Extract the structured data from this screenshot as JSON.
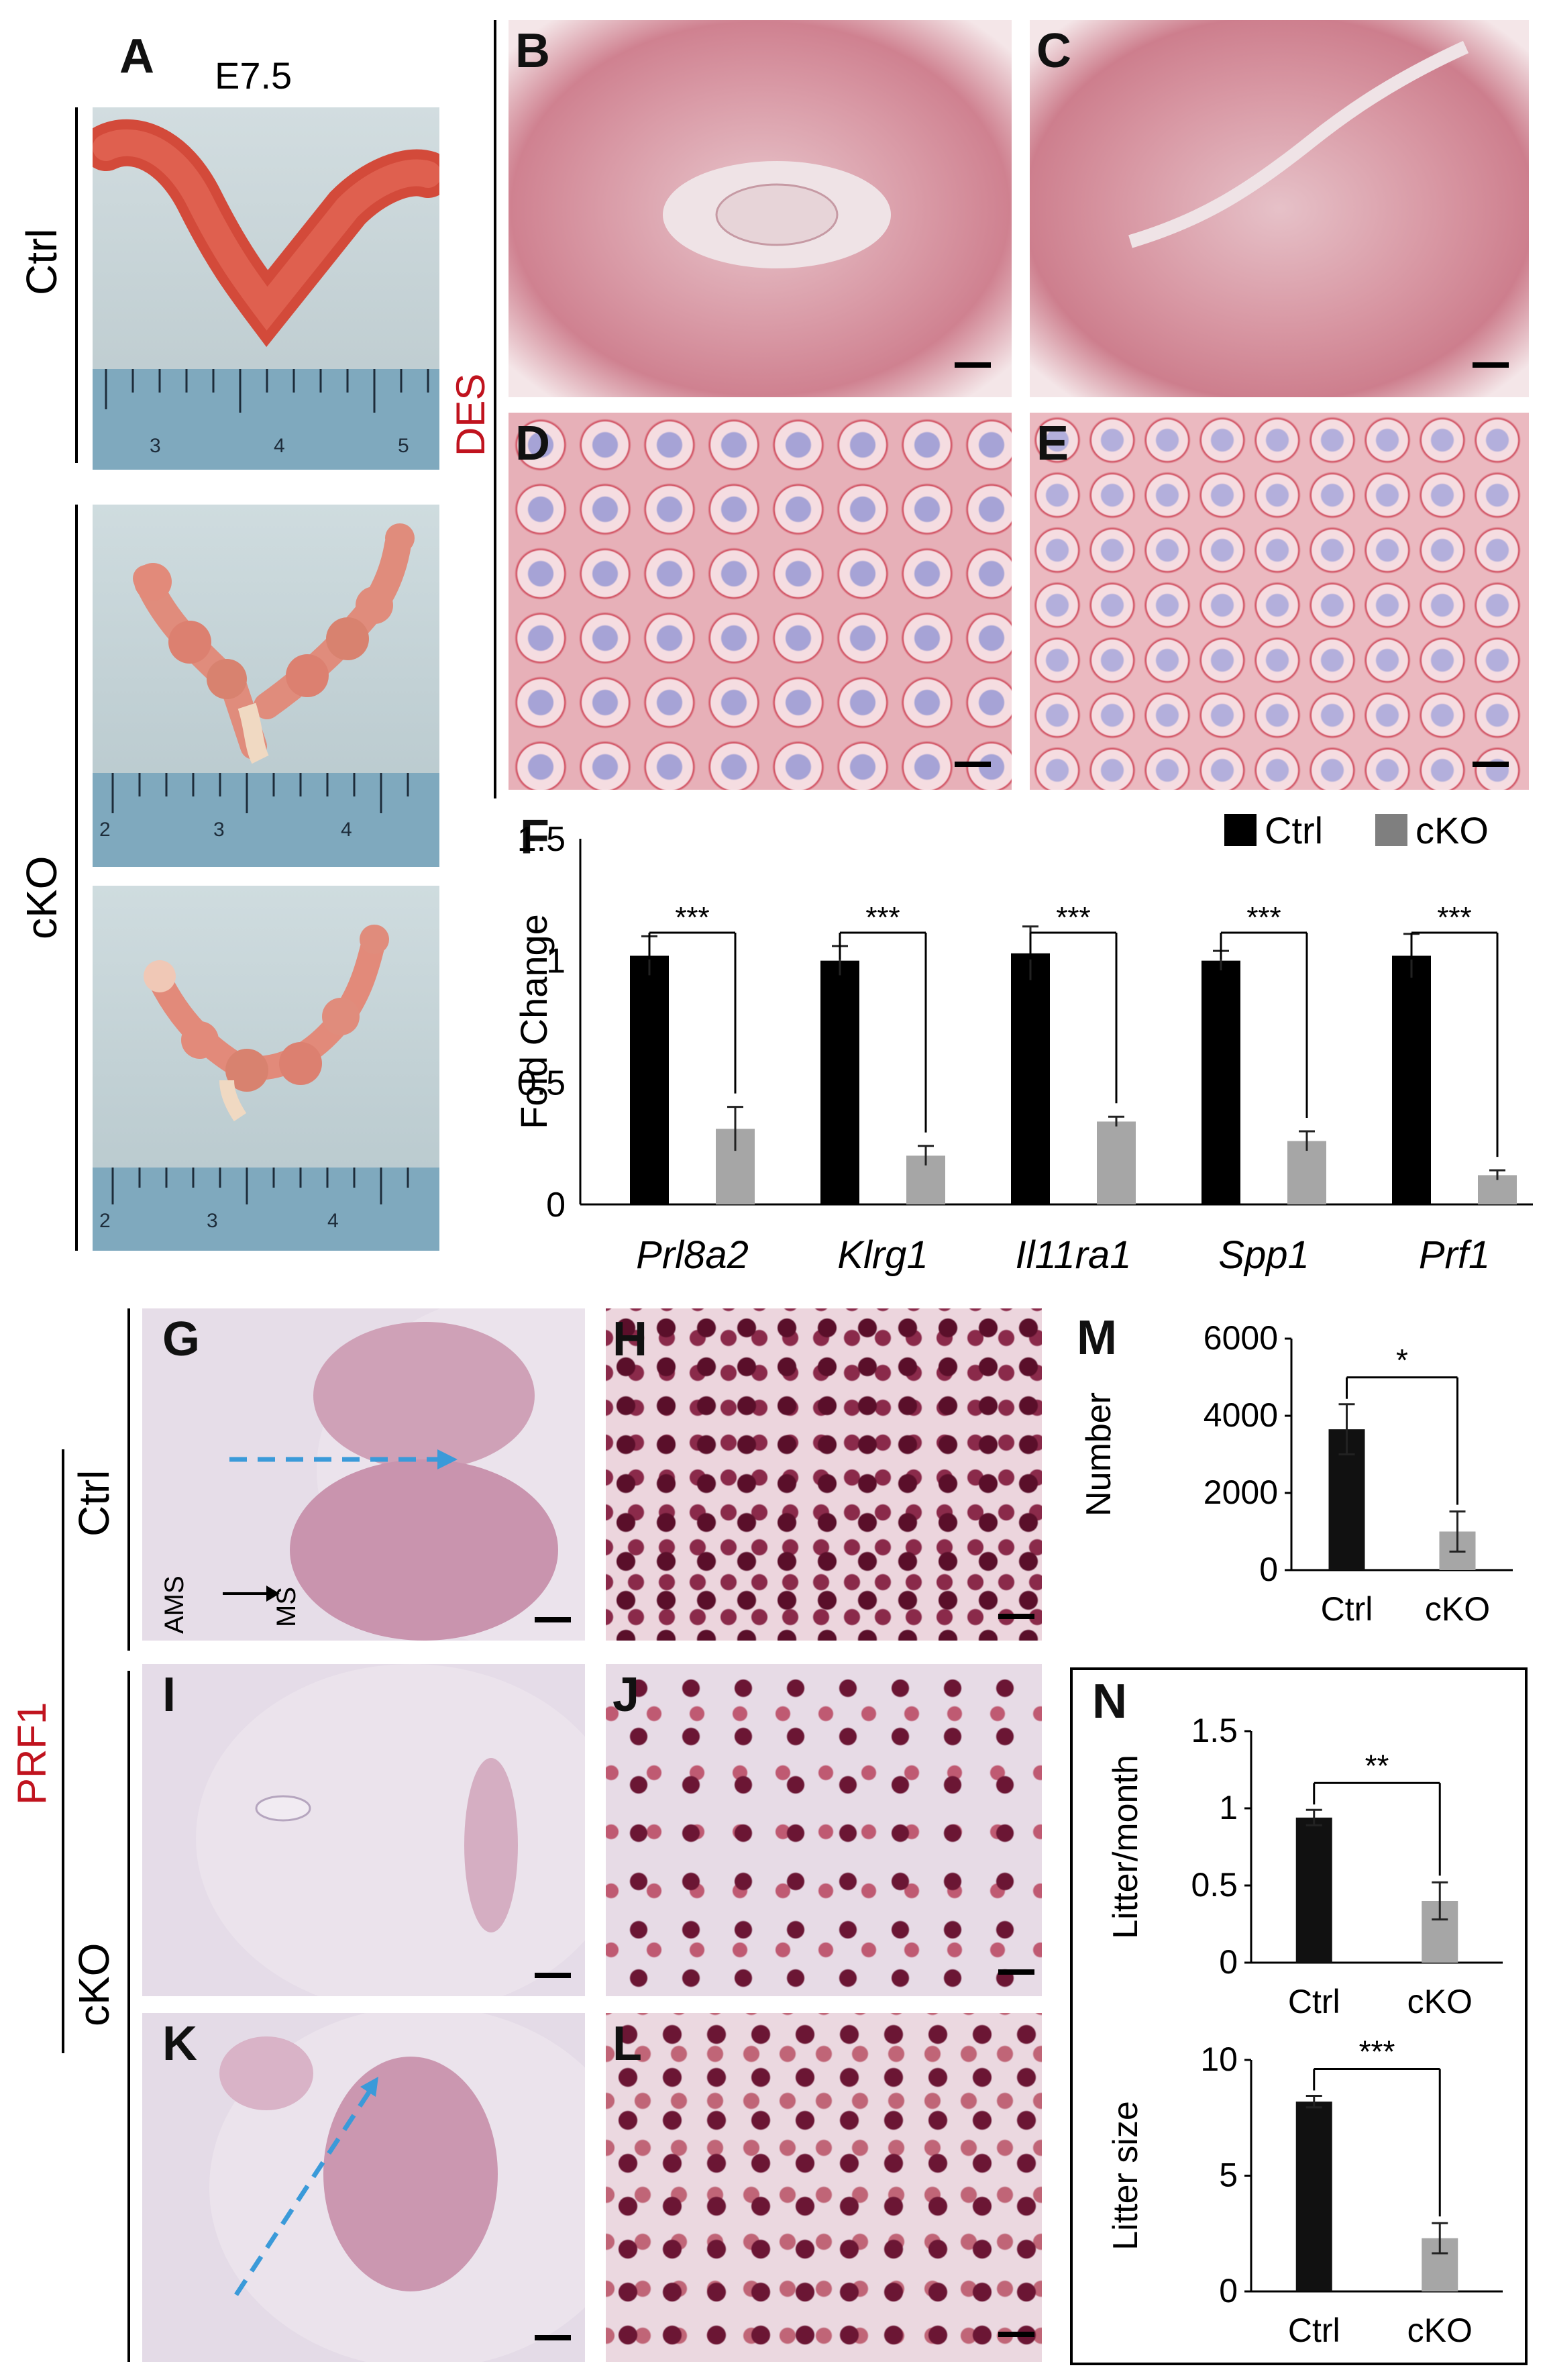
{
  "panelA": {
    "letter": "A",
    "stage": "E7.5",
    "group_ctrl": "Ctrl",
    "group_cko": "cKO",
    "ruler_top": [
      "3",
      "4",
      "5"
    ],
    "ruler_mid": [
      "2",
      "3",
      "4"
    ],
    "ruler_bot": [
      "2",
      "3",
      "4"
    ]
  },
  "panels": {
    "B": "B",
    "C": "C",
    "D": "D",
    "E": "E",
    "F": "F",
    "G": "G",
    "H": "H",
    "I": "I",
    "J": "J",
    "K": "K",
    "L": "L",
    "M": "M",
    "N": "N"
  },
  "stain_des": "DES",
  "stain_prf1": "PRF1",
  "group_ctrl": "Ctrl",
  "group_cko": "cKO",
  "axis_label_ams": "AMS",
  "axis_label_ms": "MS",
  "colors": {
    "ctrl_bar": "#000000",
    "cko_bar": "#a6a6a6",
    "stain_red": "#c0131e",
    "arrow_blue": "#3a9ad9"
  },
  "chart_data": [
    {
      "panel": "F",
      "type": "bar",
      "categories": [
        "Prl8a2",
        "Klrg1",
        "Il11ra1",
        "Spp1",
        "Prf1"
      ],
      "series": [
        {
          "name": "Ctrl",
          "values": [
            1.02,
            1.0,
            1.03,
            1.0,
            1.02
          ],
          "errors": [
            0.08,
            0.06,
            0.11,
            0.04,
            0.09
          ]
        },
        {
          "name": "cKO",
          "values": [
            0.31,
            0.2,
            0.34,
            0.26,
            0.12
          ],
          "errors": [
            0.09,
            0.04,
            0.02,
            0.04,
            0.02
          ]
        }
      ],
      "ylabel": "Fold Change",
      "ylim": [
        0,
        1.5
      ],
      "yticks": [
        "0",
        "0.5",
        "1",
        "1.5"
      ],
      "significance": [
        "***",
        "***",
        "***",
        "***",
        "***"
      ],
      "legend": "top-right"
    },
    {
      "panel": "M",
      "type": "bar",
      "categories": [
        "Ctrl",
        "cKO"
      ],
      "values": [
        3650,
        1000
      ],
      "errors": [
        650,
        520
      ],
      "ylabel": "Number",
      "ylim": [
        0,
        6000
      ],
      "yticks": [
        "0",
        "2000",
        "4000",
        "6000"
      ],
      "significance": "*"
    },
    {
      "panel": "N-top",
      "type": "bar",
      "categories": [
        "Ctrl",
        "cKO"
      ],
      "values": [
        0.94,
        0.4
      ],
      "errors": [
        0.05,
        0.12
      ],
      "ylabel": "Litter/month",
      "ylim": [
        0,
        1.5
      ],
      "yticks": [
        "0",
        "0.5",
        "1",
        "1.5"
      ],
      "significance": "**"
    },
    {
      "panel": "N-bottom",
      "type": "bar",
      "categories": [
        "Ctrl",
        "cKO"
      ],
      "values": [
        8.2,
        2.3
      ],
      "errors": [
        0.25,
        0.65
      ],
      "ylabel": "Litter size",
      "ylim": [
        0,
        10
      ],
      "yticks": [
        "0",
        "5",
        "10"
      ],
      "significance": "***"
    }
  ]
}
